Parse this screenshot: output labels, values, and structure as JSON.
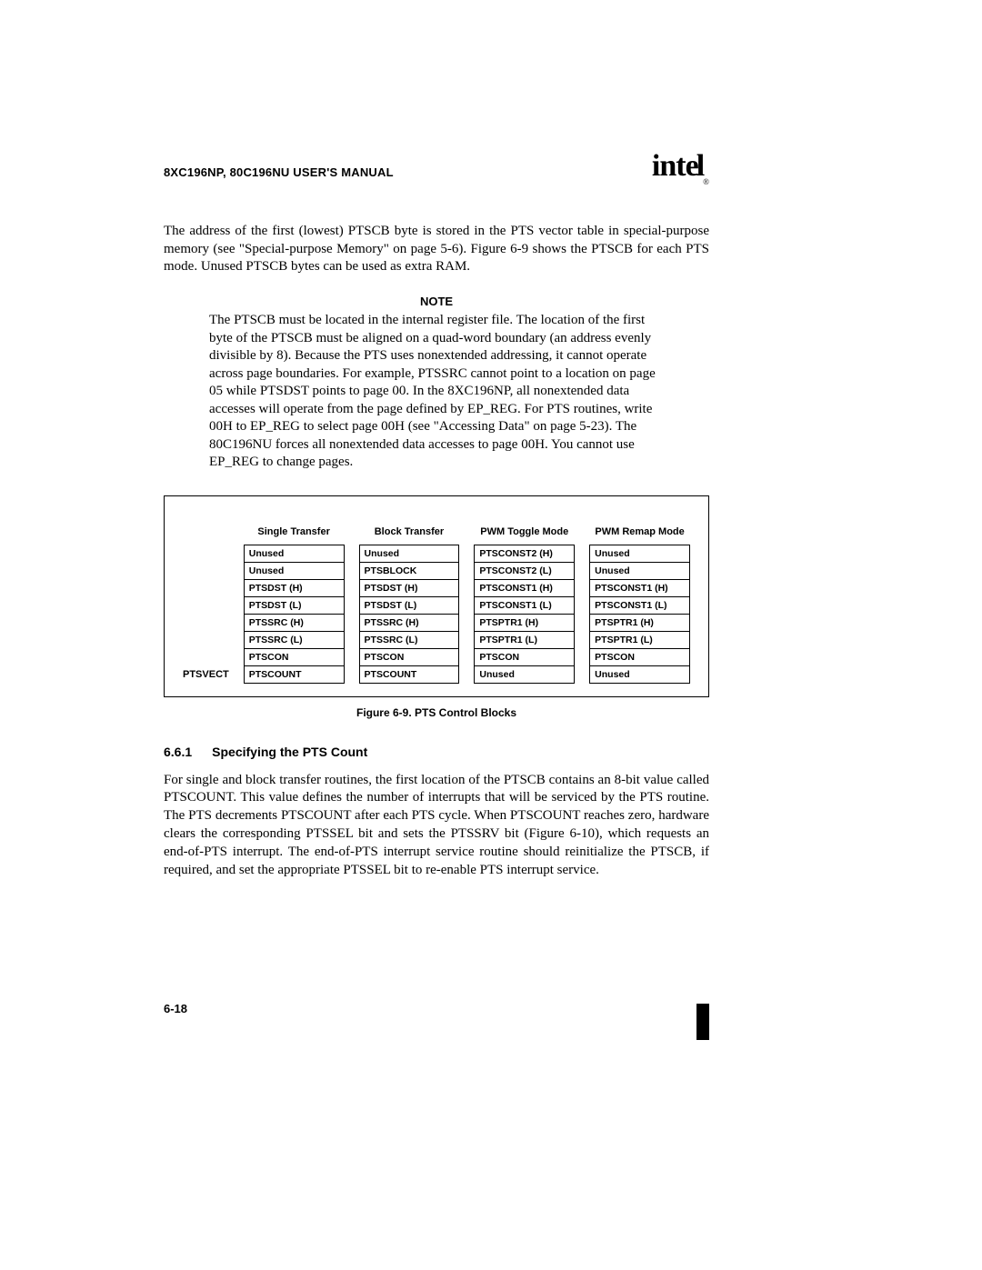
{
  "header": {
    "manual_title": "8XC196NP, 80C196NU USER'S MANUAL",
    "logo_text": "intel",
    "logo_reg": "®"
  },
  "intro_para": "The address of the first (lowest) PTSCB byte is stored in the PTS vector table in special-purpose memory (see \"Special-purpose Memory\" on page 5-6). Figure 6-9 shows the PTSCB for each PTS mode. Unused PTSCB bytes can be used as extra RAM.",
  "note": {
    "label": "NOTE",
    "body": "The PTSCB must be located in the internal register file. The location of the first byte of the PTSCB must be aligned on a quad-word boundary (an address evenly divisible by 8). Because the PTS uses nonextended addressing, it cannot operate across page boundaries. For example, PTSSRC cannot point to a location on page 05 while PTSDST points to page 00. In the 8XC196NP, all nonextended data accesses will operate from the page defined by EP_REG. For PTS routines, write 00H to EP_REG to select page 00H (see \"Accessing Data\" on page 5-23). The 80C196NU forces all nonextended data accesses to page 00H. You cannot use EP_REG to change pages."
  },
  "figure": {
    "row_label": "PTSVECT",
    "columns": [
      {
        "head": "Single Transfer",
        "cells": [
          "Unused",
          "Unused",
          "PTSDST (H)",
          "PTSDST (L)",
          "PTSSRC (H)",
          "PTSSRC (L)",
          "PTSCON",
          "PTSCOUNT"
        ]
      },
      {
        "head": "Block Transfer",
        "cells": [
          "Unused",
          "PTSBLOCK",
          "PTSDST (H)",
          "PTSDST (L)",
          "PTSSRC (H)",
          "PTSSRC (L)",
          "PTSCON",
          "PTSCOUNT"
        ]
      },
      {
        "head": "PWM Toggle Mode",
        "cells": [
          "PTSCONST2 (H)",
          "PTSCONST2 (L)",
          "PTSCONST1 (H)",
          "PTSCONST1 (L)",
          "PTSPTR1 (H)",
          "PTSPTR1 (L)",
          "PTSCON",
          "Unused"
        ]
      },
      {
        "head": "PWM Remap Mode",
        "cells": [
          "Unused",
          "Unused",
          "PTSCONST1 (H)",
          "PTSCONST1 (L)",
          "PTSPTR1 (H)",
          "PTSPTR1 (L)",
          "PTSCON",
          "Unused"
        ]
      }
    ],
    "caption": "Figure 6-9.  PTS Control Blocks"
  },
  "section": {
    "number": "6.6.1",
    "title": "Specifying the PTS Count",
    "para": "For single and block transfer routines, the first location of the PTSCB contains an 8-bit value called PTSCOUNT. This value defines the number of interrupts that will be serviced by the PTS routine. The PTS decrements PTSCOUNT after each PTS cycle. When PTSCOUNT reaches zero, hardware clears the corresponding PTSSEL bit and sets the PTSSRV bit (Figure 6-10), which requests an end-of-PTS interrupt. The end-of-PTS interrupt service routine should reinitialize the PTSCB, if required, and set the appropriate PTSSEL bit to re-enable PTS interrupt service."
  },
  "page_number": "6-18"
}
